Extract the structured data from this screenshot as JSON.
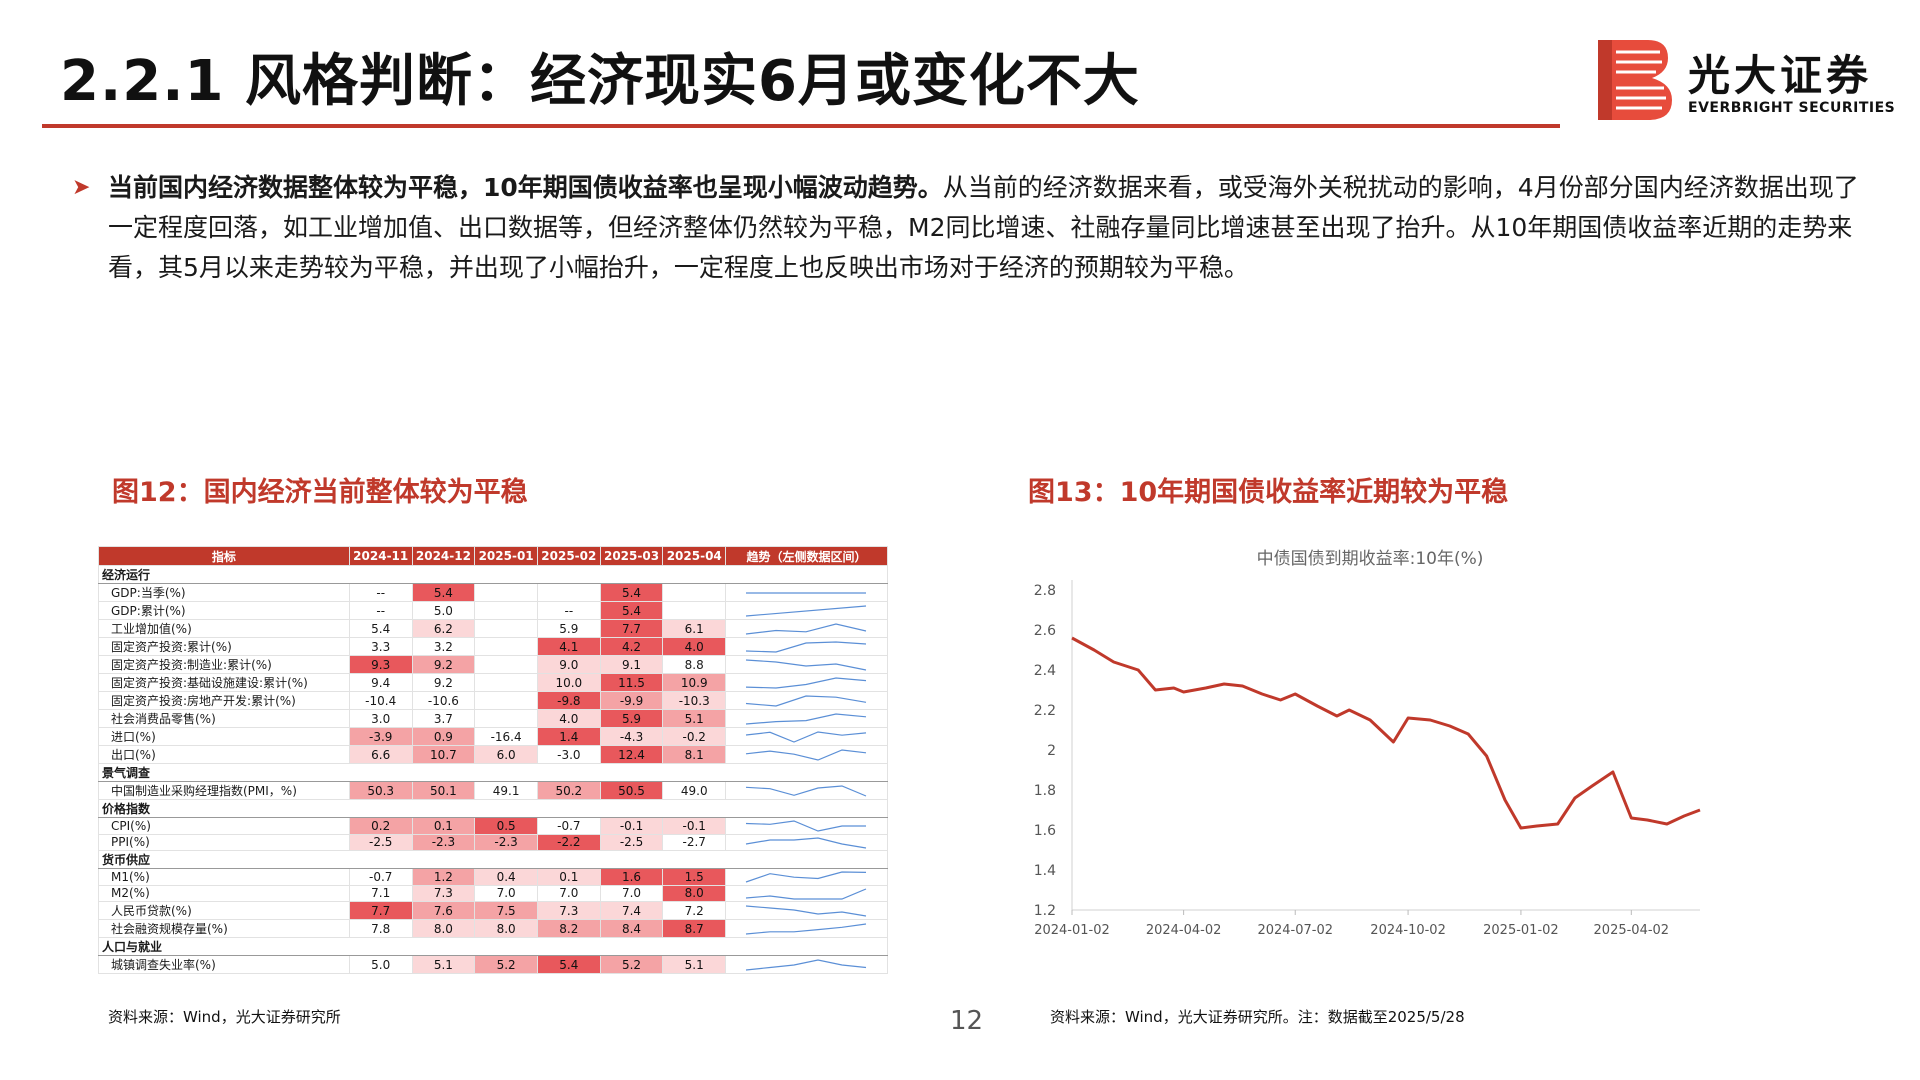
{
  "header": {
    "title": "2.2.1 风格判断：经济现实6月或变化不大",
    "logo_cn": "光大证券",
    "logo_en": "EVERBRIGHT SECURITIES",
    "accent_color": "#c0392b"
  },
  "bullet": {
    "bold": "当前国内经济数据整体较为平稳，10年期国债收益率也呈现小幅波动趋势。",
    "rest": "从当前的经济数据来看，或受海外关税扰动的影响，4月份部分国内经济数据出现了一定程度回落，如工业增加值、出口数据等，但经济整体仍然较为平稳，M2同比增速、社融存量同比增速甚至出现了抬升。从10年期国债收益率近期的走势来看，其5月以来走势较为平稳，并出现了小幅抬升，一定程度上也反映出市场对于经济的预期较为平稳。"
  },
  "fig12": {
    "title": "图12：国内经济当前整体较为平稳",
    "source": "资料来源：Wind，光大证券研究所",
    "headers": [
      "指标",
      "2024-11",
      "2024-12",
      "2025-01",
      "2025-02",
      "2025-03",
      "2025-04",
      "趋势（左侧数据区间）"
    ],
    "rows": [
      {
        "type": "cat",
        "name": "经济运行"
      },
      {
        "type": "row",
        "name": "GDP:当季(%)",
        "vals": [
          "--",
          "5.4",
          "",
          "",
          "5.4",
          ""
        ],
        "shade": [
          0,
          3,
          0,
          0,
          3,
          0
        ]
      },
      {
        "type": "row",
        "name": "GDP:累计(%)",
        "vals": [
          "--",
          "5.0",
          "",
          "--",
          "5.4",
          ""
        ],
        "shade": [
          0,
          0,
          0,
          0,
          3,
          0
        ]
      },
      {
        "type": "row",
        "name": "工业增加值(%)",
        "vals": [
          "5.4",
          "6.2",
          "",
          "5.9",
          "7.7",
          "6.1"
        ],
        "shade": [
          0,
          1,
          0,
          0,
          3,
          1
        ]
      },
      {
        "type": "row",
        "name": "固定资产投资:累计(%)",
        "vals": [
          "3.3",
          "3.2",
          "",
          "4.1",
          "4.2",
          "4.0"
        ],
        "shade": [
          0,
          0,
          0,
          3,
          3,
          3
        ]
      },
      {
        "type": "row",
        "name": "固定资产投资:制造业:累计(%)",
        "vals": [
          "9.3",
          "9.2",
          "",
          "9.0",
          "9.1",
          "8.8"
        ],
        "shade": [
          3,
          2,
          0,
          1,
          1,
          0
        ]
      },
      {
        "type": "row",
        "name": "固定资产投资:基础设施建设:累计(%)",
        "vals": [
          "9.4",
          "9.2",
          "",
          "10.0",
          "11.5",
          "10.9"
        ],
        "shade": [
          0,
          0,
          0,
          1,
          3,
          2
        ]
      },
      {
        "type": "row",
        "name": "固定资产投资:房地产开发:累计(%)",
        "vals": [
          "-10.4",
          "-10.6",
          "",
          "-9.8",
          "-9.9",
          "-10.3"
        ],
        "shade": [
          0,
          0,
          0,
          3,
          2,
          1
        ]
      },
      {
        "type": "row",
        "name": "社会消费品零售(%)",
        "vals": [
          "3.0",
          "3.7",
          "",
          "4.0",
          "5.9",
          "5.1"
        ],
        "shade": [
          0,
          0,
          0,
          1,
          3,
          2
        ]
      },
      {
        "type": "row",
        "name": "进口(%)",
        "vals": [
          "-3.9",
          "0.9",
          "-16.4",
          "1.4",
          "-4.3",
          "-0.2"
        ],
        "shade": [
          2,
          2,
          0,
          3,
          1,
          1
        ]
      },
      {
        "type": "row",
        "name": "出口(%)",
        "vals": [
          "6.6",
          "10.7",
          "6.0",
          "-3.0",
          "12.4",
          "8.1"
        ],
        "shade": [
          1,
          2,
          1,
          0,
          3,
          2
        ]
      },
      {
        "type": "cat",
        "name": "景气调查"
      },
      {
        "type": "row",
        "name": "中国制造业采购经理指数(PMI，%)",
        "vals": [
          "50.3",
          "50.1",
          "49.1",
          "50.2",
          "50.5",
          "49.0"
        ],
        "shade": [
          2,
          2,
          0,
          2,
          3,
          0
        ]
      },
      {
        "type": "cat",
        "name": "价格指数"
      },
      {
        "type": "row",
        "name": "CPI(%)",
        "vals": [
          "0.2",
          "0.1",
          "0.5",
          "-0.7",
          "-0.1",
          "-0.1"
        ],
        "shade": [
          2,
          2,
          3,
          0,
          1,
          1
        ]
      },
      {
        "type": "row",
        "name": "PPI(%)",
        "vals": [
          "-2.5",
          "-2.3",
          "-2.3",
          "-2.2",
          "-2.5",
          "-2.7"
        ],
        "shade": [
          1,
          2,
          2,
          3,
          1,
          0
        ]
      },
      {
        "type": "cat",
        "name": "货币供应"
      },
      {
        "type": "row",
        "name": "M1(%)",
        "vals": [
          "-0.7",
          "1.2",
          "0.4",
          "0.1",
          "1.6",
          "1.5"
        ],
        "shade": [
          0,
          2,
          1,
          1,
          3,
          3
        ]
      },
      {
        "type": "row",
        "name": "M2(%)",
        "vals": [
          "7.1",
          "7.3",
          "7.0",
          "7.0",
          "7.0",
          "8.0"
        ],
        "shade": [
          0,
          1,
          0,
          0,
          0,
          3
        ]
      },
      {
        "type": "row",
        "name": "人民币贷款(%)",
        "vals": [
          "7.7",
          "7.6",
          "7.5",
          "7.3",
          "7.4",
          "7.2"
        ],
        "shade": [
          3,
          2,
          2,
          1,
          1,
          0
        ]
      },
      {
        "type": "row",
        "name": "社会融资规模存量(%)",
        "vals": [
          "7.8",
          "8.0",
          "8.0",
          "8.2",
          "8.4",
          "8.7"
        ],
        "shade": [
          0,
          1,
          1,
          2,
          2,
          3
        ]
      },
      {
        "type": "cat",
        "name": "人口与就业"
      },
      {
        "type": "row",
        "name": "城镇调查失业率(%)",
        "vals": [
          "5.0",
          "5.1",
          "5.2",
          "5.4",
          "5.2",
          "5.1"
        ],
        "shade": [
          0,
          1,
          2,
          3,
          2,
          1
        ]
      }
    ]
  },
  "fig13": {
    "title": "图13：10年期国债收益率近期较为平稳",
    "source": "资料来源：Wind，光大证券研究所。注：数据截至2025/5/28"
  },
  "chart_data": {
    "type": "line",
    "title": "中债国债到期收益率:10年(%)",
    "xlabel": "",
    "ylabel": "",
    "ylim": [
      1.2,
      2.8
    ],
    "yticks": [
      1.2,
      1.4,
      1.6,
      1.8,
      2.0,
      2.2,
      2.4,
      2.6,
      2.8
    ],
    "xticks": [
      "2024-01-02",
      "2024-04-02",
      "2024-07-02",
      "2024-10-02",
      "2025-01-02",
      "2025-04-02"
    ],
    "xlim": [
      "2024-01-02",
      "2025-05-28"
    ],
    "color": "#c0392b",
    "series": [
      {
        "x": [
          "2024-01-02",
          "2024-01-20",
          "2024-02-05",
          "2024-02-25",
          "2024-03-10",
          "2024-03-25",
          "2024-04-02",
          "2024-04-20",
          "2024-05-05",
          "2024-05-20",
          "2024-06-05",
          "2024-06-20",
          "2024-07-02",
          "2024-07-20",
          "2024-08-05",
          "2024-08-15",
          "2024-09-01",
          "2024-09-20",
          "2024-10-02",
          "2024-10-20",
          "2024-11-05",
          "2024-11-20",
          "2024-12-05",
          "2024-12-20",
          "2025-01-02",
          "2025-01-15",
          "2025-02-01",
          "2025-02-15",
          "2025-03-01",
          "2025-03-18",
          "2025-04-02",
          "2025-04-15",
          "2025-05-01",
          "2025-05-15",
          "2025-05-28"
        ],
        "values": [
          2.56,
          2.5,
          2.44,
          2.4,
          2.3,
          2.31,
          2.29,
          2.31,
          2.33,
          2.32,
          2.28,
          2.25,
          2.28,
          2.22,
          2.17,
          2.2,
          2.15,
          2.04,
          2.16,
          2.15,
          2.12,
          2.08,
          1.97,
          1.75,
          1.61,
          1.62,
          1.63,
          1.76,
          1.82,
          1.89,
          1.66,
          1.65,
          1.63,
          1.67,
          1.7
        ]
      }
    ]
  }
}
